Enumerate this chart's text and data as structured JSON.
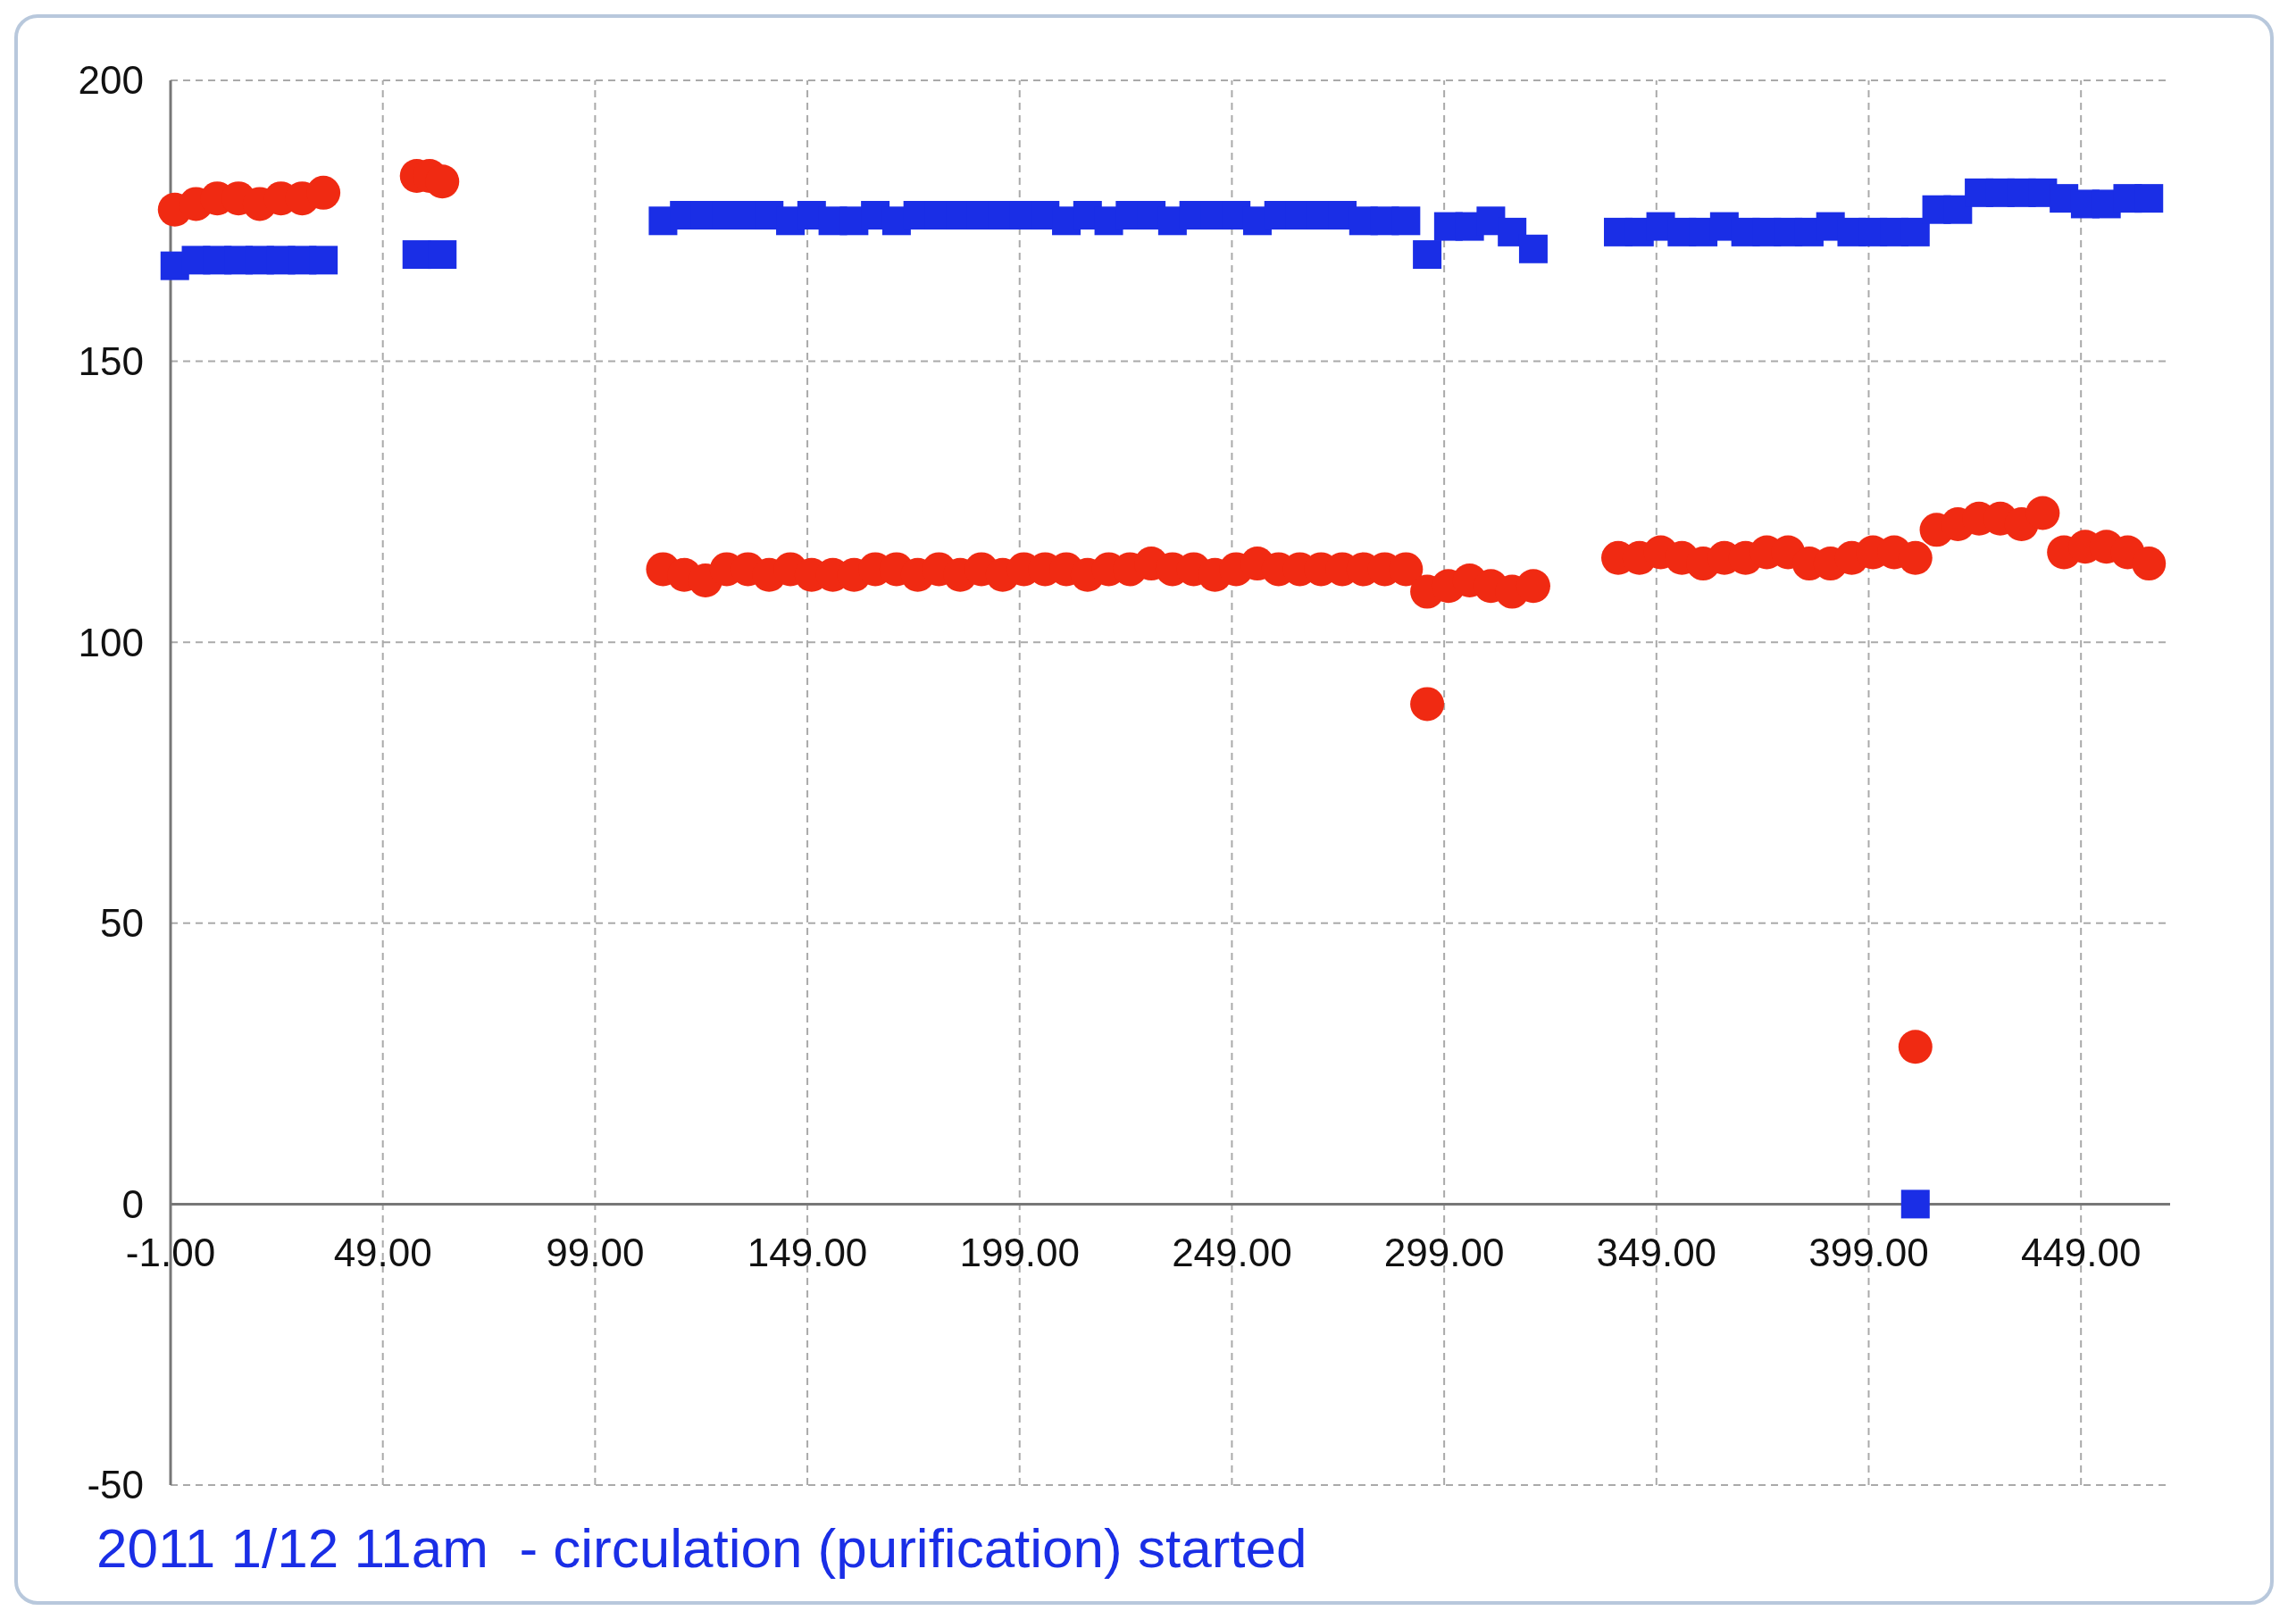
{
  "chart_data": {
    "type": "scatter",
    "xlim": [
      -1,
      470
    ],
    "ylim": [
      -50,
      200
    ],
    "xticks": [
      {
        "value": -1,
        "label": "-1.00"
      },
      {
        "value": 49,
        "label": "49.00"
      },
      {
        "value": 99,
        "label": "99.00"
      },
      {
        "value": 149,
        "label": "149.00"
      },
      {
        "value": 199,
        "label": "199.00"
      },
      {
        "value": 249,
        "label": "249.00"
      },
      {
        "value": 299,
        "label": "299.00"
      },
      {
        "value": 349,
        "label": "349.00"
      },
      {
        "value": 399,
        "label": "399.00"
      },
      {
        "value": 449,
        "label": "449.00"
      }
    ],
    "yticks": [
      -50,
      0,
      50,
      100,
      150,
      200
    ],
    "grid": true,
    "annotations": [
      "2011 1/12 11am  - circulation (purification) started"
    ],
    "series": [
      {
        "color": "#f02a12",
        "marker": "circle",
        "x": [
          0,
          5,
          10,
          15,
          20,
          25,
          30,
          35,
          57,
          60,
          63,
          115,
          120,
          125,
          130,
          135,
          140,
          145,
          150,
          155,
          160,
          165,
          170,
          175,
          180,
          185,
          190,
          195,
          200,
          205,
          210,
          215,
          220,
          225,
          230,
          235,
          240,
          245,
          250,
          255,
          260,
          265,
          270,
          275,
          280,
          285,
          290,
          295,
          300,
          305,
          310,
          315,
          320,
          295,
          340,
          345,
          350,
          355,
          360,
          365,
          370,
          375,
          380,
          385,
          390,
          395,
          400,
          405,
          410,
          415,
          420,
          425,
          430,
          435,
          440,
          445,
          450,
          455,
          460,
          465,
          410
        ],
        "values": [
          177,
          178,
          179,
          179,
          178,
          179,
          179,
          180,
          183,
          183,
          182,
          113,
          112,
          111,
          113,
          113,
          112,
          113,
          112,
          112,
          112,
          113,
          113,
          112,
          113,
          112,
          113,
          112,
          113,
          113,
          113,
          112,
          113,
          113,
          114,
          113,
          113,
          112,
          113,
          114,
          113,
          113,
          113,
          113,
          113,
          113,
          113,
          109,
          110,
          111,
          110,
          109,
          110,
          89,
          115,
          115,
          116,
          115,
          114,
          115,
          115,
          116,
          116,
          114,
          114,
          115,
          116,
          116,
          115,
          120,
          121,
          122,
          122,
          121,
          123,
          116,
          117,
          117,
          116,
          114,
          28
        ]
      },
      {
        "color": "#1a2ee6",
        "marker": "square",
        "x": [
          0,
          5,
          10,
          15,
          20,
          25,
          30,
          35,
          57,
          63,
          115,
          120,
          125,
          130,
          135,
          140,
          145,
          150,
          155,
          160,
          165,
          170,
          175,
          180,
          185,
          190,
          195,
          200,
          205,
          210,
          215,
          220,
          225,
          230,
          235,
          240,
          245,
          250,
          255,
          260,
          265,
          270,
          275,
          280,
          285,
          290,
          295,
          300,
          305,
          310,
          315,
          320,
          340,
          345,
          350,
          355,
          360,
          365,
          370,
          375,
          380,
          385,
          390,
          395,
          400,
          405,
          410,
          415,
          420,
          425,
          430,
          435,
          440,
          445,
          450,
          455,
          460,
          465,
          410
        ],
        "values": [
          167,
          168,
          168,
          168,
          168,
          168,
          168,
          168,
          169,
          169,
          175,
          176,
          176,
          176,
          176,
          176,
          175,
          176,
          175,
          175,
          176,
          175,
          176,
          176,
          176,
          176,
          176,
          176,
          176,
          175,
          176,
          175,
          176,
          176,
          175,
          176,
          176,
          176,
          175,
          176,
          176,
          176,
          176,
          175,
          175,
          175,
          169,
          174,
          174,
          175,
          173,
          170,
          173,
          173,
          174,
          173,
          173,
          174,
          173,
          173,
          173,
          173,
          174,
          173,
          173,
          173,
          173,
          177,
          177,
          180,
          180,
          180,
          180,
          179,
          178,
          178,
          179,
          179,
          0
        ]
      }
    ]
  }
}
